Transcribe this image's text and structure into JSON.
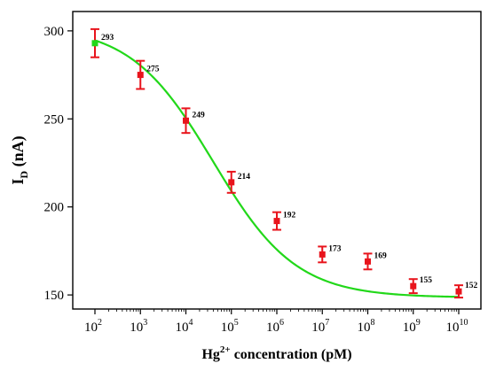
{
  "chart_data": {
    "type": "scatter",
    "title": "",
    "xlabel": {
      "base": "Hg",
      "superscript": "2+",
      "rest": " concentration (pM)"
    },
    "ylabel": {
      "main": "I",
      "subscript": "D",
      "rest": " (nA)"
    },
    "x_scale": "log",
    "x_exponents": [
      2,
      3,
      4,
      5,
      6,
      7,
      8,
      9,
      10
    ],
    "x_tick_base": "10",
    "x": [
      100,
      1000,
      10000,
      100000,
      1000000,
      10000000,
      100000000,
      1000000000,
      10000000000
    ],
    "y": [
      293,
      275,
      249,
      214,
      192,
      173,
      169,
      155,
      152
    ],
    "y_error": [
      8,
      8,
      7,
      6,
      5,
      4.5,
      4.5,
      4,
      3.5
    ],
    "data_labels": [
      "293",
      "275",
      "249",
      "214",
      "192",
      "173",
      "169",
      "155",
      "152"
    ],
    "y_ticks": [
      "150",
      "200",
      "250",
      "300"
    ],
    "ylim": [
      142,
      311
    ],
    "fit_curve": {
      "type": "sigmoidal",
      "color": "#22d81a",
      "upper_asymptote": 303,
      "lower_asymptote": 148.5,
      "midpoint_exponent": 4.6,
      "slope": 0.55
    },
    "colors": {
      "marker": "#e8141c",
      "error_bar": "#e8141c",
      "fit_line": "#22d81a",
      "first_marker": "#22d81a"
    },
    "grid": false,
    "legend": "none"
  }
}
